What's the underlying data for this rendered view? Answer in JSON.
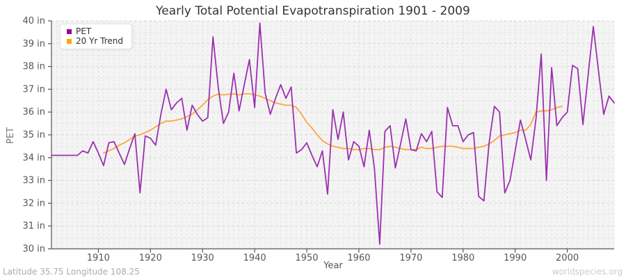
{
  "title": "Yearly Total Potential Evapotranspiration 1901 - 2009",
  "footer": {
    "left": "Latitude 35.75 Longitude 108.25",
    "right": "worldspecies.org"
  },
  "legend": [
    {
      "label": "PET",
      "color": "#990099"
    },
    {
      "label": "20 Yr Trend",
      "color": "#ffa400"
    }
  ],
  "colors": {
    "pet_line": "#9b30ae",
    "trend_line": "#ffa53d",
    "plot_bg": "#f4f4f4",
    "grid_minor": "#e3e3e3",
    "grid_major": "#d8d8d8",
    "spine": "#545454",
    "tick_text": "#555555",
    "title_text": "#333333",
    "axis_title_text": "#777777"
  },
  "chart_data": {
    "type": "line",
    "title": "Yearly Total Potential Evapotranspiration 1901 - 2009",
    "xlabel": "Year",
    "ylabel": "PET",
    "xlim": [
      1901,
      2009
    ],
    "ylim": [
      30,
      40
    ],
    "grid": true,
    "legend_position": "top-left",
    "x_ticks": [
      1910,
      1920,
      1930,
      1940,
      1950,
      1960,
      1970,
      1980,
      1990,
      2000
    ],
    "y_ticks": [
      30,
      31,
      32,
      33,
      34,
      35,
      36,
      37,
      38,
      39,
      40
    ],
    "y_tick_labels": [
      "30 in",
      "31 in",
      "32 in",
      "33 in",
      "34 in",
      "35 in",
      "36 in",
      "37 in",
      "38 in",
      "39 in",
      "40 in"
    ],
    "series": [
      {
        "name": "PET",
        "color": "#9b30ae",
        "x_start": 1901,
        "values": [
          34.1,
          34.1,
          34.1,
          34.1,
          34.1,
          34.1,
          34.3,
          34.2,
          34.7,
          34.2,
          33.65,
          34.65,
          34.7,
          34.2,
          33.7,
          34.4,
          35.05,
          32.45,
          34.95,
          34.85,
          34.55,
          35.9,
          37.0,
          36.1,
          36.4,
          36.6,
          35.2,
          36.3,
          35.9,
          35.6,
          35.75,
          39.3,
          37.1,
          35.5,
          36.0,
          37.7,
          36.05,
          37.2,
          38.3,
          36.2,
          39.9,
          36.85,
          35.9,
          36.6,
          37.2,
          36.6,
          37.1,
          34.2,
          34.35,
          34.65,
          34.1,
          33.6,
          34.3,
          32.4,
          36.1,
          34.8,
          36.0,
          33.9,
          34.7,
          34.5,
          33.6,
          35.2,
          33.5,
          30.2,
          35.15,
          35.4,
          33.55,
          34.6,
          35.7,
          34.35,
          34.3,
          35.05,
          34.7,
          35.15,
          32.5,
          32.25,
          36.2,
          35.4,
          35.4,
          34.7,
          35.0,
          35.1,
          32.3,
          32.1,
          34.65,
          36.25,
          36.0,
          32.45,
          33.0,
          34.3,
          35.65,
          34.8,
          33.9,
          35.7,
          38.55,
          33.0,
          37.95,
          35.4,
          35.75,
          36.0,
          38.05,
          37.9,
          35.45,
          37.6,
          39.75,
          37.8,
          35.9,
          36.7,
          36.4
        ]
      },
      {
        "name": "20 Yr Trend",
        "color": "#ffa53d",
        "x_start": 1911,
        "values": [
          34.2,
          34.3,
          34.4,
          34.55,
          34.65,
          34.8,
          34.95,
          35.0,
          35.1,
          35.2,
          35.35,
          35.5,
          35.6,
          35.6,
          35.65,
          35.7,
          35.8,
          35.9,
          36.1,
          36.3,
          36.55,
          36.7,
          36.78,
          36.75,
          36.78,
          36.8,
          36.75,
          36.8,
          36.8,
          36.75,
          36.7,
          36.6,
          36.5,
          36.4,
          36.35,
          36.3,
          36.3,
          36.2,
          35.9,
          35.55,
          35.3,
          35.0,
          34.75,
          34.6,
          34.5,
          34.45,
          34.4,
          34.4,
          34.35,
          34.35,
          34.4,
          34.4,
          34.35,
          34.35,
          34.45,
          34.5,
          34.45,
          34.4,
          34.35,
          34.35,
          34.35,
          34.45,
          34.4,
          34.4,
          34.45,
          34.5,
          34.5,
          34.5,
          34.45,
          34.4,
          34.4,
          34.4,
          34.45,
          34.5,
          34.6,
          34.75,
          34.95,
          35.0,
          35.05,
          35.1,
          35.2,
          35.2,
          35.45,
          36.0,
          36.05,
          36.05,
          36.1,
          36.2,
          36.25
        ]
      }
    ]
  }
}
